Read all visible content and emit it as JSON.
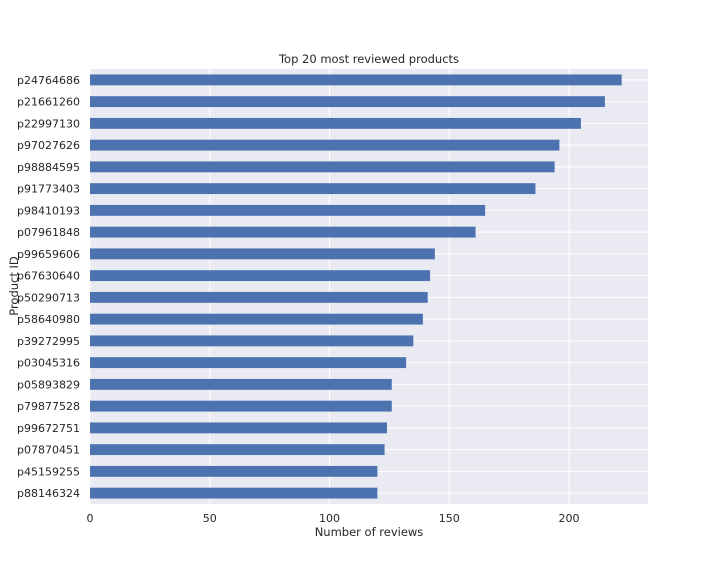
{
  "chart_data": {
    "type": "bar",
    "orientation": "horizontal",
    "title": "Top 20 most reviewed products",
    "xlabel": "Number of reviews",
    "ylabel": "Product ID",
    "categories": [
      "p24764686",
      "p21661260",
      "p22997130",
      "p97027626",
      "p98884595",
      "p91773403",
      "p98410193",
      "p07961848",
      "p99659606",
      "p67630640",
      "p50290713",
      "p58640980",
      "p39272995",
      "p03045316",
      "p05893829",
      "p79877528",
      "p99672751",
      "p07870451",
      "p45159255",
      "p88146324"
    ],
    "values": [
      222,
      215,
      205,
      196,
      194,
      186,
      165,
      161,
      144,
      142,
      141,
      139,
      135,
      132,
      126,
      126,
      124,
      123,
      120,
      120
    ],
    "xlim": [
      0,
      233
    ],
    "xticks": [
      0,
      50,
      100,
      150,
      200
    ],
    "grid": true,
    "colors": {
      "bar": "#4c72b0",
      "background": "#eaeaf2",
      "grid": "#ffffff",
      "text": "#262626"
    }
  }
}
